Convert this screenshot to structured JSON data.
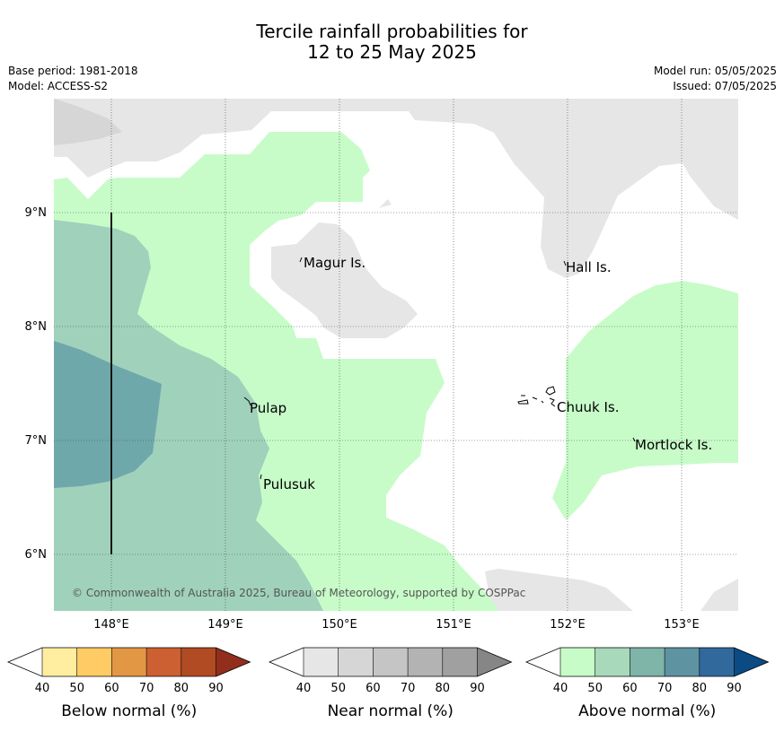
{
  "title": {
    "line1": "Tercile rainfall probabilities for",
    "line2": "12 to 25 May 2025"
  },
  "meta": {
    "base_period": "Base period: 1981-2018",
    "model": "Model: ACCESS-S2",
    "model_run": "Model run: 05/05/2025",
    "issued": "Issued: 07/05/2025"
  },
  "map": {
    "lon_labels": [
      "148°E",
      "149°E",
      "150°E",
      "151°E",
      "152°E",
      "153°E"
    ],
    "lat_labels": [
      "9°N",
      "8°N",
      "7°N",
      "6°N"
    ],
    "places": [
      "Magur Is.",
      "Hall Is.",
      "Pulap",
      "Chuuk Is.",
      "Mortlock Is.",
      "Pulusuk"
    ],
    "copyright": "© Commonwealth of Australia 2025, Bureau of Meteorology, supported by COSPPac"
  },
  "colorbars": [
    {
      "title": "Below normal (%)",
      "ticks": [
        "40",
        "50",
        "60",
        "70",
        "80",
        "90"
      ],
      "colors": [
        "#ffffff",
        "#ffeda0",
        "#fecb65",
        "#e29745",
        "#cd6032",
        "#b04b24",
        "#922e1c"
      ]
    },
    {
      "title": "Near normal (%)",
      "ticks": [
        "40",
        "50",
        "60",
        "70",
        "80",
        "90"
      ],
      "colors": [
        "#ffffff",
        "#e6e6e6",
        "#d6d6d6",
        "#c5c5c5",
        "#b3b3b3",
        "#a0a0a0",
        "#868686"
      ]
    },
    {
      "title": "Above normal (%)",
      "ticks": [
        "40",
        "50",
        "60",
        "70",
        "80",
        "90"
      ],
      "colors": [
        "#ffffff",
        "#c7fcc8",
        "#a9d9bb",
        "#7fb4a8",
        "#5e94a2",
        "#31699c",
        "#0b4a83"
      ]
    }
  ]
}
